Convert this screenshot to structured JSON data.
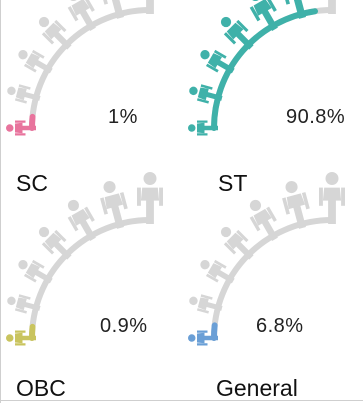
{
  "chart_data": [
    {
      "type": "pictorial-fraction",
      "label": "SC",
      "value": 1,
      "value_label": "1%",
      "color": "#e8749d"
    },
    {
      "type": "pictorial-fraction",
      "label": "ST",
      "value": 90.8,
      "value_label": "90.8%",
      "color": "#3fb1a9"
    },
    {
      "type": "pictorial-fraction",
      "label": "OBC",
      "value": 0.9,
      "value_label": "0.9%",
      "color": "#c9c45e"
    },
    {
      "type": "pictorial-fraction",
      "label": "General",
      "value": 6.8,
      "value_label": "6.8%",
      "color": "#6a9fd6"
    }
  ],
  "base_color": "#d6d6d6",
  "icon": "person-arc-icon"
}
